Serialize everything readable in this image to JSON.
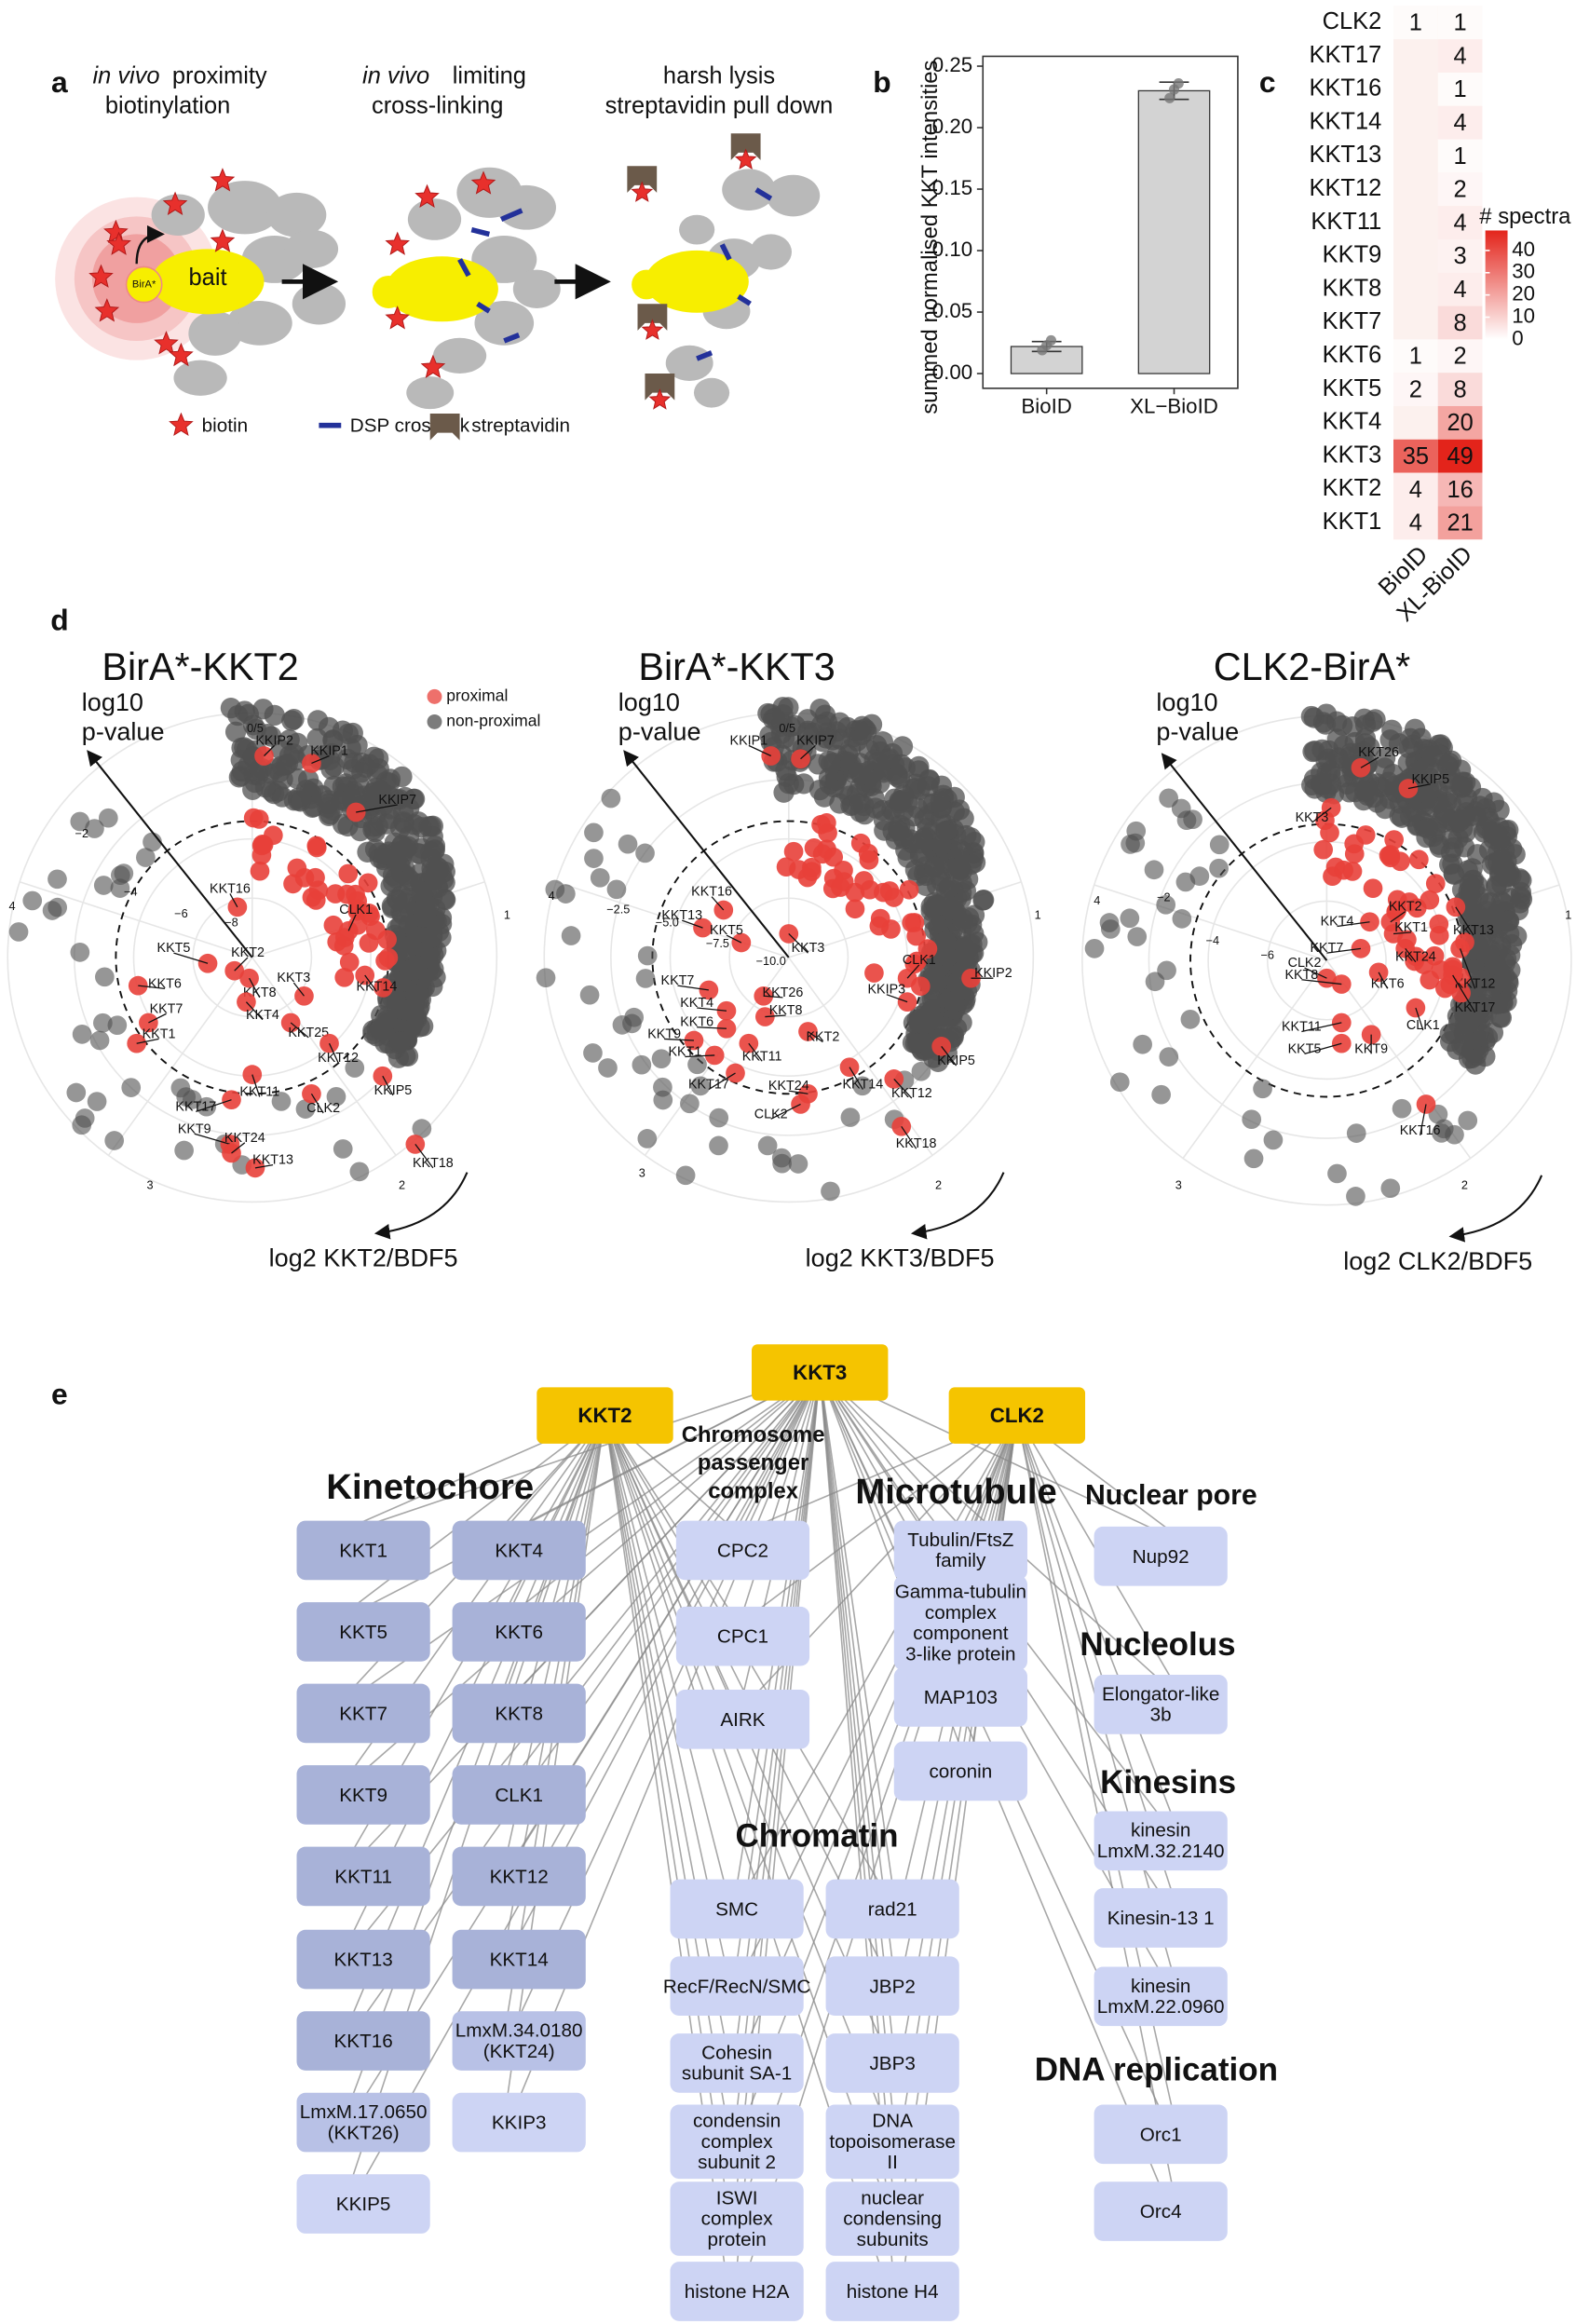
{
  "panel_labels": [
    "a",
    "b",
    "c",
    "d",
    "e"
  ],
  "schematic": {
    "steps": [
      {
        "em": "in vivo",
        "line1": "proximity",
        "line2": "biotinylation"
      },
      {
        "em": "in vivo",
        "line1": "limiting",
        "line2": "cross-linking"
      },
      {
        "line1": "harsh lysis",
        "line2": "streptavidin pull down"
      }
    ],
    "birA": "BirA*",
    "bait": "bait",
    "legend": [
      "biotin",
      "DSP crosslink",
      "streptavidin"
    ]
  },
  "chart_data": [
    {
      "type": "bar",
      "y_label": "summed normalised KKT intensities",
      "categories": [
        "BioID",
        "XL−BioID"
      ],
      "values": [
        0.022,
        0.23
      ],
      "errors": [
        0.004,
        0.007
      ],
      "points": [
        [
          0.019,
          0.023,
          0.027
        ],
        [
          0.224,
          0.231,
          0.236
        ]
      ],
      "color": "#d3d3d3",
      "ylim": [
        -0.012,
        0.258
      ],
      "yticks": [
        {
          "value": 0,
          "label": "0.00"
        },
        {
          "value": 0.05,
          "label": "0.05"
        },
        {
          "value": 0.1,
          "label": "0.10"
        },
        {
          "value": 0.15,
          "label": "0.15"
        },
        {
          "value": 0.2,
          "label": "0.20"
        },
        {
          "value": 0.25,
          "label": "0.25"
        }
      ]
    },
    {
      "type": "heatmap",
      "legend_title": "# spectra",
      "rows": [
        "CLK2",
        "KKT17",
        "KKT16",
        "KKT14",
        "KKT13",
        "KKT12",
        "KKT11",
        "KKT9",
        "KKT8",
        "KKT7",
        "KKT6",
        "KKT5",
        "KKT4",
        "KKT3",
        "KKT2",
        "KKT1"
      ],
      "columns": [
        "BioID",
        "XL-BioID"
      ],
      "values": [
        [
          1,
          1
        ],
        [
          null,
          4
        ],
        [
          null,
          1
        ],
        [
          null,
          4
        ],
        [
          null,
          1
        ],
        [
          null,
          2
        ],
        [
          null,
          4
        ],
        [
          null,
          3
        ],
        [
          null,
          4
        ],
        [
          null,
          8
        ],
        [
          1,
          2
        ],
        [
          2,
          8
        ],
        [
          null,
          20
        ],
        [
          35,
          49
        ],
        [
          4,
          16
        ],
        [
          4,
          21
        ]
      ],
      "colors": [
        "#ffffff",
        "#e3241b"
      ],
      "clim": [
        0,
        49
      ],
      "colorbar_ticks": [
        0,
        10,
        20,
        30,
        40
      ]
    },
    {
      "type": "polar",
      "title": "BirA*-KKT2",
      "y_label": "log10\np-value",
      "x_label": "log2 KKT2/BDF5",
      "legend": [
        "proximal",
        "non-proximal"
      ],
      "colors": [
        "#e8403a",
        "#505050"
      ],
      "outer_ticks": [
        "0/5",
        "1",
        "2",
        "3",
        "4"
      ],
      "radial_ticks": [
        "−2",
        "−4",
        "−6",
        "−8"
      ],
      "labels": [
        "KKIP2",
        "KKIP1",
        "KKIP7",
        "KKT16",
        "KKT5",
        "KKT2",
        "KKT6",
        "KKT8",
        "KKT3",
        "CLK1",
        "KKT14",
        "KKT7",
        "KKT4",
        "KKT25",
        "KKT1",
        "KKT12",
        "KKT11",
        "KKIP5",
        "KKT17",
        "KKT9",
        "CLK2",
        "KKT24",
        "KKT13",
        "KKT18"
      ]
    },
    {
      "type": "polar",
      "title": "BirA*-KKT3",
      "y_label": "log10\np-value",
      "x_label": "log2 KKT3/BDF5",
      "colors": [
        "#e8403a",
        "#505050"
      ],
      "outer_ticks": [
        "0/5",
        "1",
        "2",
        "3",
        "4"
      ],
      "radial_ticks": [
        "−2.5",
        "−5.0",
        "−7.5",
        "−10.0"
      ],
      "labels": [
        "KKIP1",
        "KKIP7",
        "KKT16",
        "KKT13",
        "KKT5",
        "KKT3",
        "CLK1",
        "KKIP2",
        "KKT7",
        "KKT26",
        "KKIP3",
        "KKT4",
        "KKT8",
        "KKT6",
        "KKT9",
        "KKT2",
        "KKIP5",
        "KKT1",
        "KKT11",
        "KKT12",
        "KKT17",
        "KKT24",
        "KKT14",
        "CLK2",
        "KKT18"
      ]
    },
    {
      "type": "polar",
      "title": "CLK2-BirA*",
      "y_label": "log10\np-value",
      "x_label": "log2 CLK2/BDF5",
      "colors": [
        "#e8403a",
        "#505050"
      ],
      "outer_ticks": [
        "1",
        "2",
        "3",
        "4"
      ],
      "radial_ticks": [
        "−2",
        "−4",
        "−6"
      ],
      "labels": [
        "KKT26",
        "KKIP5",
        "KKT3",
        "KKT13",
        "KKT4",
        "KKT2",
        "KKT1",
        "KKT12",
        "KKT7",
        "KKT24",
        "CLK2",
        "KKT8",
        "KKT6",
        "KKT17",
        "KKT11",
        "CLK1",
        "KKT5",
        "KKT9",
        "KKT16"
      ]
    }
  ],
  "network": {
    "hubs": [
      "KKT2",
      "KKT3",
      "CLK2"
    ],
    "hub_color": "#f5c400",
    "groups": [
      {
        "title": "Kinetochore",
        "color": "#a8b2d8",
        "columns": [
          [
            "KKT1",
            "KKT5",
            "KKT7",
            "KKT9",
            "KKT11",
            "KKT13",
            "KKT16",
            {
              "label": "LmxM.17.0650\n(KKT26)",
              "color": "#b8c1e6"
            },
            {
              "label": "KKIP5",
              "color": "#cdd4f4"
            }
          ],
          [
            "KKT4",
            "KKT6",
            "KKT8",
            "CLK1",
            "KKT12",
            "KKT14",
            {
              "label": "LmxM.34.0180\n(KKT24)",
              "color": "#b8c1e6"
            },
            {
              "label": "KKIP3",
              "color": "#cdd4f4"
            }
          ]
        ]
      },
      {
        "title": "Chromosome\npassenger\ncomplex",
        "color": "#cdd4f4",
        "columns": [
          [
            "CPC2",
            "CPC1",
            "AIRK"
          ]
        ]
      },
      {
        "title": "Microtubule",
        "color": "#cdd4f4",
        "columns": [
          [
            "Tubulin/FtsZ\nfamily",
            "Gamma-tubulin\ncomplex\ncomponent\n3-like protein",
            "MAP103",
            "coronin"
          ]
        ]
      },
      {
        "title": "Nuclear pore",
        "color": "#cdd4f4",
        "columns": [
          [
            "Nup92"
          ]
        ]
      },
      {
        "title": "Nucleolus",
        "color": "#cdd4f4",
        "columns": [
          [
            "Elongator-like\n3b"
          ]
        ]
      },
      {
        "title": "Kinesins",
        "color": "#cdd4f4",
        "columns": [
          [
            "kinesin\nLmxM.32.2140",
            "Kinesin-13 1",
            "kinesin\nLmxM.22.0960"
          ]
        ]
      },
      {
        "title": "Chromatin",
        "color": "#cdd4f4",
        "columns": [
          [
            "SMC",
            "RecF/RecN/SMC",
            "Cohesin\nsubunit SA-1",
            "condensin\ncomplex\nsubunit 2",
            "ISWI\ncomplex\nprotein",
            "histone H2A"
          ],
          [
            "rad21",
            "JBP2",
            "JBP3",
            "DNA\ntopoisomerase\nII",
            "nuclear\ncondensing\nsubunits",
            "histone H4"
          ]
        ]
      },
      {
        "title": "DNA replication",
        "color": "#cdd4f4",
        "columns": [
          [
            "Orc1",
            "Orc4"
          ]
        ]
      }
    ]
  }
}
